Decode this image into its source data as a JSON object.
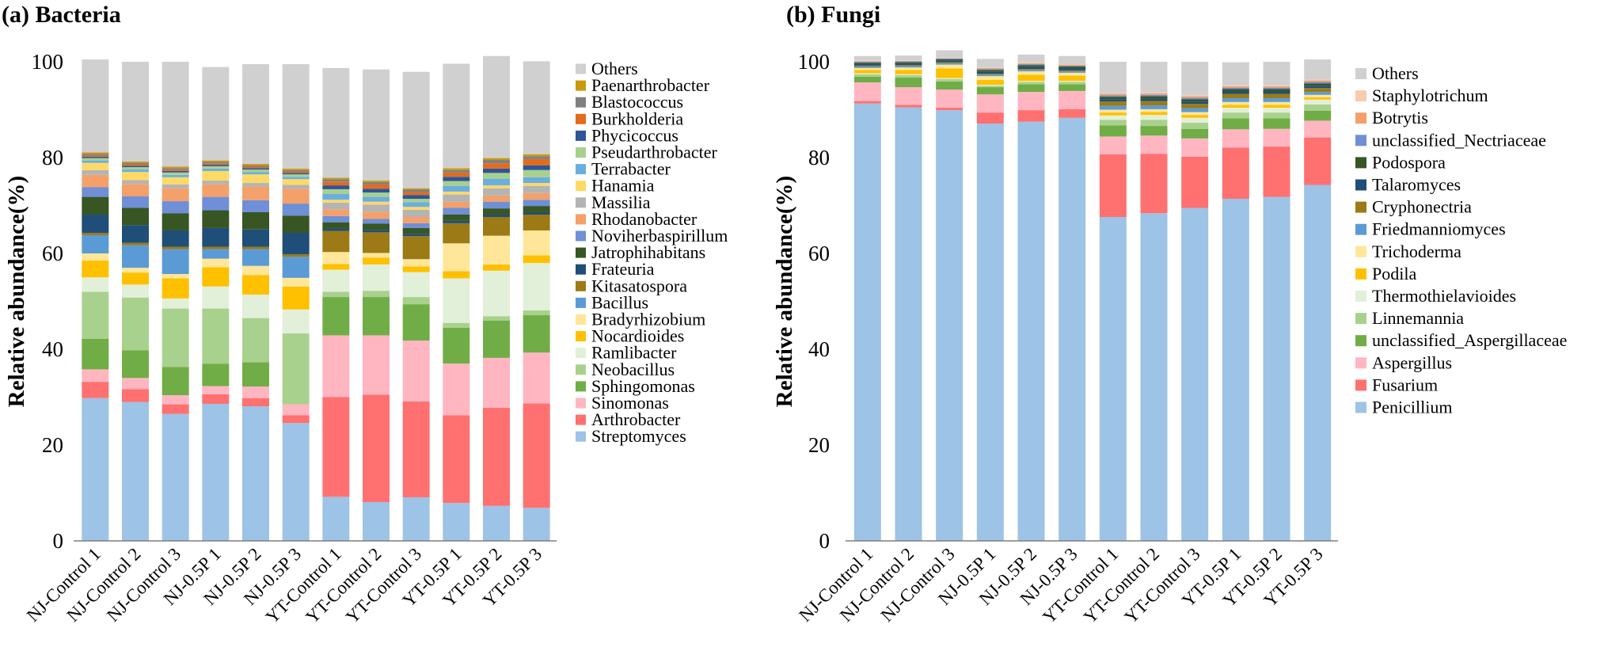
{
  "chart_data": [
    {
      "type": "bar",
      "stacked": true,
      "title": "(a) Bacteria",
      "xlabel": "",
      "ylabel": "Relative abundance(%)",
      "ylim": [
        0,
        100
      ],
      "yticks": [
        0,
        20,
        40,
        60,
        80,
        100
      ],
      "legend_position": "right",
      "categories": [
        "NJ-Control 1",
        "NJ-Control 2",
        "NJ-Control 3",
        "NJ-0.5P 1",
        "NJ-0.5P 2",
        "NJ-0.5P 3",
        "YT-Control 1",
        "YT-Control 2",
        "YT-Control 3",
        "YT-0.5P 1",
        "YT-0.5P 2",
        "YT-0.5P 3"
      ],
      "series": [
        {
          "name": "Streptomyces",
          "color": "#9DC3E6",
          "values": [
            29.8,
            29.0,
            26.5,
            28.6,
            28.1,
            24.6,
            9.2,
            8.1,
            9.1,
            7.9,
            7.3,
            6.9
          ]
        },
        {
          "name": "Arthrobacter",
          "color": "#FF7070",
          "values": [
            3.4,
            2.7,
            2.0,
            2.0,
            1.7,
            1.6,
            20.8,
            22.4,
            20.0,
            18.3,
            20.5,
            21.8
          ]
        },
        {
          "name": "Sinomonas",
          "color": "#FFB6C1",
          "values": [
            2.6,
            2.3,
            1.9,
            1.7,
            2.4,
            2.3,
            12.9,
            12.4,
            12.7,
            10.8,
            10.4,
            10.6
          ]
        },
        {
          "name": "Sphingomonas",
          "color": "#70AD47",
          "values": [
            6.4,
            5.8,
            5.9,
            4.7,
            5.1,
            0.0,
            8.0,
            8.0,
            7.6,
            7.5,
            7.8,
            7.8
          ]
        },
        {
          "name": "Neobacillus",
          "color": "#A9D18E",
          "values": [
            9.8,
            11.0,
            12.2,
            11.5,
            9.2,
            14.8,
            1.1,
            1.3,
            1.5,
            1.0,
            0.9,
            1.0
          ]
        },
        {
          "name": "Ramlibacter",
          "color": "#E2F0D9",
          "values": [
            3.0,
            2.7,
            2.1,
            4.6,
            4.9,
            5.0,
            4.6,
            5.5,
            5.2,
            9.3,
            9.5,
            9.9
          ]
        },
        {
          "name": "Nocardioides",
          "color": "#FFC000",
          "values": [
            3.5,
            2.5,
            4.2,
            4.0,
            4.1,
            4.8,
            1.2,
            1.4,
            1.2,
            1.5,
            1.3,
            1.6
          ]
        },
        {
          "name": "Bradyrhizobium",
          "color": "#FFE699",
          "values": [
            1.5,
            1.0,
            0.9,
            1.8,
            1.9,
            1.8,
            2.5,
            1.0,
            1.5,
            5.8,
            6.0,
            5.2
          ]
        },
        {
          "name": "Bacillus",
          "color": "#5B9BD5",
          "values": [
            3.8,
            4.7,
            5.2,
            2.0,
            3.5,
            4.4,
            0.0,
            0.0,
            0.0,
            0.0,
            0.0,
            0.0
          ]
        },
        {
          "name": "Kitasatospora",
          "color": "#9C7A16",
          "values": [
            0.5,
            0.5,
            0.5,
            0.5,
            0.5,
            0.5,
            4.4,
            4.3,
            4.8,
            4.2,
            3.9,
            3.3
          ]
        },
        {
          "name": "Frateuria",
          "color": "#1F4E79",
          "values": [
            3.8,
            3.7,
            3.4,
            3.9,
            3.6,
            4.5,
            0.5,
            0.5,
            0.5,
            0.5,
            0.5,
            0.5
          ]
        },
        {
          "name": "Jatrophihabitans",
          "color": "#375623",
          "values": [
            3.7,
            3.6,
            3.6,
            3.7,
            3.6,
            3.6,
            1.3,
            1.3,
            1.2,
            1.3,
            1.3,
            1.3
          ]
        },
        {
          "name": "Noviherbaspirillum",
          "color": "#6F8FD6",
          "values": [
            2.0,
            2.4,
            2.5,
            2.8,
            2.5,
            2.5,
            1.3,
            1.0,
            1.0,
            1.4,
            1.4,
            1.3
          ]
        },
        {
          "name": "Rhodanobacter",
          "color": "#F4A06A",
          "values": [
            2.6,
            2.6,
            2.7,
            2.6,
            2.8,
            3.1,
            1.4,
            1.5,
            1.3,
            1.3,
            1.3,
            1.4
          ]
        },
        {
          "name": "Massilia",
          "color": "#B4B4B4",
          "values": [
            1.0,
            0.8,
            0.8,
            0.8,
            0.8,
            0.8,
            1.4,
            1.5,
            1.5,
            1.5,
            1.5,
            1.5
          ]
        },
        {
          "name": "Hanamia",
          "color": "#FFD966",
          "values": [
            1.5,
            1.7,
            1.5,
            2.0,
            1.8,
            1.2,
            0.6,
            0.6,
            0.6,
            0.6,
            0.6,
            0.6
          ]
        },
        {
          "name": "Terrabacter",
          "color": "#6AAEE0",
          "values": [
            0.5,
            0.5,
            0.5,
            0.5,
            0.5,
            0.5,
            1.2,
            1.0,
            1.0,
            1.2,
            1.4,
            1.2
          ]
        },
        {
          "name": "Pseudarthrobacter",
          "color": "#A8D08D",
          "values": [
            0.5,
            0.5,
            0.5,
            0.5,
            0.5,
            0.5,
            1.0,
            0.9,
            0.7,
            1.0,
            1.2,
            1.5
          ]
        },
        {
          "name": "Phycicoccus",
          "color": "#2E5597",
          "values": [
            0.3,
            0.3,
            0.3,
            0.3,
            0.3,
            0.3,
            0.8,
            0.8,
            0.8,
            0.9,
            0.9,
            1.0
          ]
        },
        {
          "name": "Burkholderia",
          "color": "#E26B1C",
          "values": [
            0.3,
            0.3,
            0.3,
            0.3,
            0.3,
            0.3,
            0.8,
            0.9,
            0.6,
            0.9,
            1.1,
            1.3
          ]
        },
        {
          "name": "Blastococcus",
          "color": "#7F7F7F",
          "values": [
            0.3,
            0.3,
            0.3,
            0.3,
            0.3,
            0.3,
            0.5,
            0.5,
            0.5,
            0.5,
            0.7,
            0.6
          ]
        },
        {
          "name": "Paenarthrobacter",
          "color": "#C99A0C",
          "values": [
            0.3,
            0.3,
            0.3,
            0.3,
            0.3,
            0.3,
            0.3,
            0.3,
            0.3,
            0.4,
            0.4,
            0.4
          ]
        },
        {
          "name": "Others",
          "color": "#D0D0D0",
          "values": [
            19.4,
            20.8,
            21.9,
            19.5,
            20.8,
            21.8,
            22.9,
            23.2,
            24.3,
            21.8,
            21.3,
            19.4
          ]
        }
      ]
    },
    {
      "type": "bar",
      "stacked": true,
      "title": "(b) Fungi",
      "xlabel": "",
      "ylabel": "Relative abundance(%)",
      "ylim": [
        0,
        100
      ],
      "yticks": [
        0,
        20,
        40,
        60,
        80,
        100
      ],
      "legend_position": "right",
      "categories": [
        "NJ-Control 1",
        "NJ-Control 2",
        "NJ-Control 3",
        "NJ-0.5P 1",
        "NJ-0.5P 2",
        "NJ-0.5P 3",
        "YT-Control 1",
        "YT-Control 2",
        "YT-Control 3",
        "YT-0.5P 1",
        "YT-0.5P 2",
        "YT-0.5P 3"
      ],
      "series": [
        {
          "name": "Penicillium",
          "color": "#9DC3E6",
          "values": [
            91.3,
            90.5,
            89.9,
            87.1,
            87.5,
            88.3,
            67.6,
            68.4,
            69.5,
            71.4,
            71.8,
            74.3
          ]
        },
        {
          "name": "Fusarium",
          "color": "#FF7070",
          "values": [
            0.5,
            0.5,
            0.5,
            2.3,
            2.4,
            1.8,
            13.1,
            12.4,
            10.7,
            10.7,
            10.5,
            9.9
          ]
        },
        {
          "name": "Aspergillus",
          "color": "#FFB6C1",
          "values": [
            3.9,
            3.7,
            3.8,
            3.8,
            3.8,
            3.8,
            3.7,
            3.8,
            3.8,
            3.8,
            3.7,
            3.5
          ]
        },
        {
          "name": "unclassified_Aspergillaceae",
          "color": "#70AD47",
          "values": [
            1.2,
            2.0,
            1.7,
            1.5,
            1.6,
            1.4,
            2.3,
            2.0,
            2.0,
            2.3,
            2.2,
            2.1
          ]
        },
        {
          "name": "Linnemannia",
          "color": "#A9D18E",
          "values": [
            0.5,
            0.5,
            0.5,
            0.3,
            0.5,
            0.5,
            1.2,
            1.3,
            1.3,
            1.2,
            1.2,
            1.3
          ]
        },
        {
          "name": "Thermothielavioides",
          "color": "#E2F0D9",
          "values": [
            0.2,
            0.2,
            0.2,
            0.2,
            0.2,
            0.2,
            0.9,
            1.0,
            1.0,
            1.0,
            1.0,
            1.0
          ]
        },
        {
          "name": "Podila",
          "color": "#FFC000",
          "values": [
            0.7,
            0.9,
            2.0,
            1.0,
            1.3,
            1.1,
            0.6,
            0.6,
            0.6,
            0.6,
            0.6,
            0.5
          ]
        },
        {
          "name": "Trichoderma",
          "color": "#FFE699",
          "values": [
            0.4,
            0.5,
            0.8,
            0.8,
            0.7,
            0.6,
            0.6,
            0.6,
            0.6,
            0.6,
            0.6,
            0.5
          ]
        },
        {
          "name": "Friedmanniomyces",
          "color": "#5B9BD5",
          "values": [
            0.3,
            0.3,
            0.3,
            0.3,
            0.3,
            0.3,
            0.8,
            0.8,
            0.8,
            0.8,
            0.8,
            0.6
          ]
        },
        {
          "name": "Cryphonectria",
          "color": "#9C7A16",
          "values": [
            0.2,
            0.2,
            0.2,
            0.2,
            0.2,
            0.2,
            0.9,
            0.9,
            0.9,
            0.9,
            0.9,
            0.8
          ]
        },
        {
          "name": "Talaromyces",
          "color": "#1F4E79",
          "values": [
            0.3,
            0.3,
            0.3,
            0.4,
            0.4,
            0.4,
            0.5,
            0.5,
            0.5,
            0.5,
            0.5,
            0.5
          ]
        },
        {
          "name": "Podospora",
          "color": "#375623",
          "values": [
            0.3,
            0.3,
            0.3,
            0.4,
            0.4,
            0.4,
            0.5,
            0.5,
            0.5,
            0.5,
            0.5,
            0.5
          ]
        },
        {
          "name": "unclassified_Nectriaceae",
          "color": "#6F8FD6",
          "values": [
            0.2,
            0.2,
            0.2,
            0.2,
            0.2,
            0.2,
            0.3,
            0.3,
            0.3,
            0.3,
            0.3,
            0.3
          ]
        },
        {
          "name": "Botrytis",
          "color": "#F4A06A",
          "values": [
            0.1,
            0.1,
            0.1,
            0.2,
            0.2,
            0.2,
            0.3,
            0.3,
            0.3,
            0.3,
            0.3,
            0.3
          ]
        },
        {
          "name": "Staphylotrichum",
          "color": "#F8CBAD",
          "values": [
            0.1,
            0.1,
            0.1,
            0.1,
            0.1,
            0.1,
            0.2,
            0.2,
            0.2,
            0.2,
            0.2,
            0.2
          ]
        },
        {
          "name": "Others",
          "color": "#D0D0D0",
          "values": [
            1.0,
            1.0,
            1.5,
            1.8,
            1.7,
            1.7,
            6.5,
            6.4,
            7.0,
            4.8,
            4.9,
            4.2
          ]
        }
      ]
    }
  ]
}
